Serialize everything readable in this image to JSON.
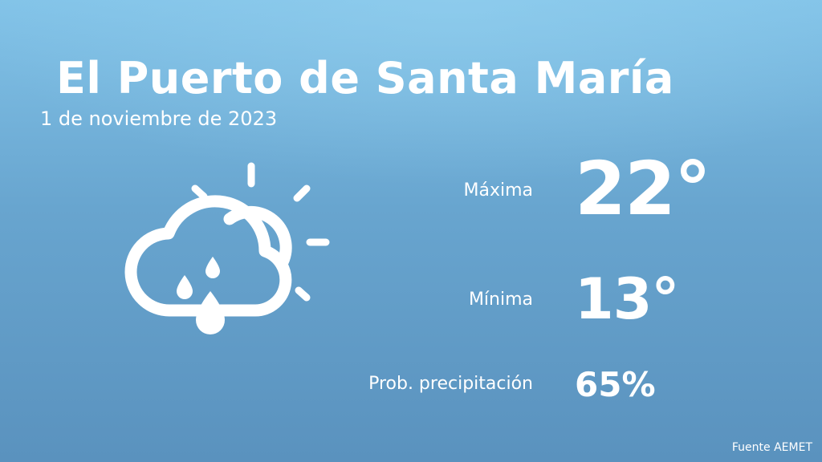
{
  "header": {
    "city": "El Puerto de Santa María",
    "date": "1 de noviembre de 2023"
  },
  "weather": {
    "icon": "partly-cloudy-rain-icon",
    "max_label": "Máxima",
    "max_value": "22°",
    "min_label": "Mínima",
    "min_value": "13°",
    "precip_label": "Prob. precipitación",
    "precip_value": "65%"
  },
  "footer": {
    "source": "Fuente AEMET"
  },
  "colors": {
    "background_top": "#82c3e8",
    "background_bottom": "#5a92be",
    "text": "#ffffff"
  }
}
